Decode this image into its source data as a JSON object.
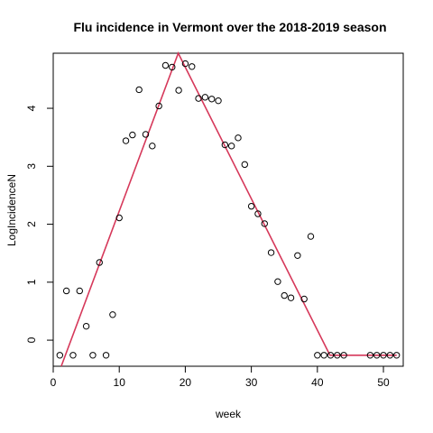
{
  "chart_data": {
    "type": "scatter",
    "title": "Flu incidence in Vermont over the 2018-2019 season",
    "xlabel": "week",
    "ylabel": "LogIncidenceN",
    "xlim": [
      0,
      53
    ],
    "ylim": [
      -0.45,
      4.95
    ],
    "xticks": [
      0,
      10,
      20,
      30,
      40,
      50
    ],
    "yticks": [
      0,
      1,
      2,
      3,
      4
    ],
    "grid": false,
    "legend": "none",
    "colors": {
      "points": "#000000",
      "fit_line": "#d6385a"
    },
    "series": [
      {
        "x": [
          1,
          2,
          3,
          4,
          5,
          6,
          7,
          8,
          9,
          10,
          11,
          12,
          13,
          14,
          15,
          16,
          17,
          18,
          19,
          20,
          21,
          22,
          23,
          24,
          25,
          26,
          27,
          28,
          29,
          30,
          31,
          32,
          33,
          34,
          35,
          36,
          37,
          38,
          39,
          40,
          41,
          42,
          43,
          44,
          48,
          49,
          50,
          51,
          52
        ],
        "y": [
          -0.26,
          0.85,
          -0.26,
          0.85,
          0.24,
          -0.26,
          1.34,
          -0.26,
          0.44,
          2.11,
          3.44,
          3.54,
          4.32,
          3.55,
          3.35,
          4.04,
          4.74,
          4.71,
          4.31,
          4.77,
          4.72,
          4.17,
          4.19,
          4.16,
          4.13,
          3.37,
          3.35,
          3.49,
          3.03,
          2.31,
          2.18,
          2.01,
          1.51,
          1.01,
          0.77,
          0.73,
          1.46,
          0.71,
          1.79,
          -0.26,
          -0.26,
          -0.26,
          -0.26,
          -0.26,
          -0.26,
          -0.26,
          -0.26,
          -0.26,
          -0.26
        ]
      },
      {
        "x": [
          1.21,
          18.93,
          41.91,
          52
        ],
        "y": [
          -0.45,
          4.95,
          -0.26,
          -0.26
        ]
      }
    ]
  }
}
